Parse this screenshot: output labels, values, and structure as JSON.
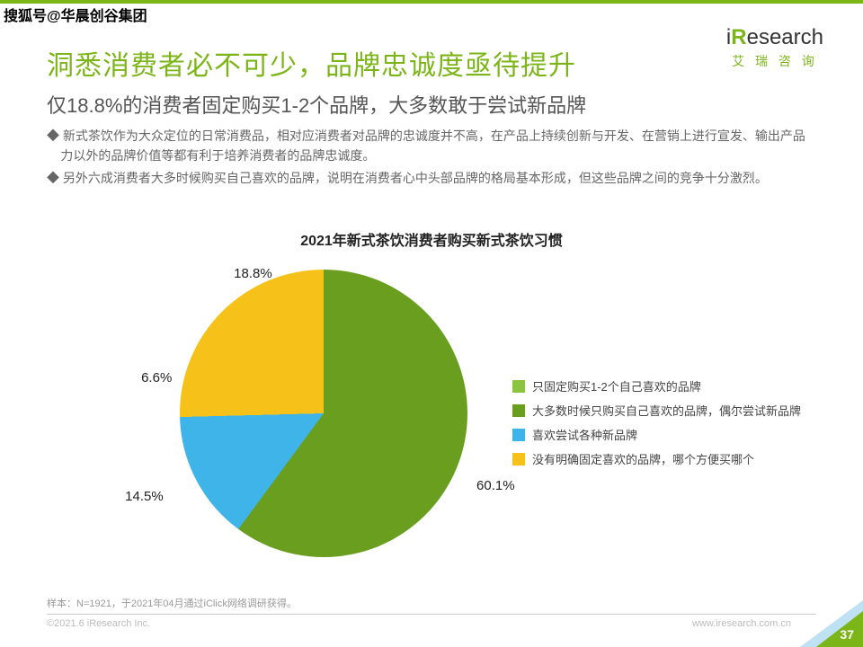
{
  "watermark": "搜狐号@华晨创谷集团",
  "logo": {
    "pre": "i",
    "bold": "R",
    "post": "esearch",
    "sub": "艾 瑞 咨 询"
  },
  "title": "洞悉消费者必不可少，品牌忠诚度亟待提升",
  "subtitle": "仅18.8%的消费者固定购买1-2个品牌，大多数敢于尝试新品牌",
  "bullets": [
    "◆ 新式茶饮作为大众定位的日常消费品，相对应消费者对品牌的忠诚度并不高，在产品上持续创新与开发、在营销上进行宣发、输出产品力以外的品牌价值等都有利于培养消费者的品牌忠诚度。",
    "◆ 另外六成消费者大多时候购买自己喜欢的品牌，说明在消费者心中头部品牌的格局基本形成，但这些品牌之间的竞争十分激烈。"
  ],
  "chart": {
    "type": "pie",
    "title": "2021年新式茶饮消费者购买新式茶饮习惯",
    "slices": [
      {
        "label": "只固定购买1-2个自己喜欢的品牌",
        "value": 18.8,
        "display": "18.8%",
        "color": "#8bc540"
      },
      {
        "label": "大多数时候只购买自己喜欢的品牌，偶尔尝试新品牌",
        "value": 60.1,
        "display": "60.1%",
        "color": "#6a9e1f"
      },
      {
        "label": "喜欢尝试各种新品牌",
        "value": 14.5,
        "display": "14.5%",
        "color": "#3fb4e8"
      },
      {
        "label": "没有明确固定喜欢的品牌，哪个方便买哪个",
        "value": 6.6,
        "display": "6.6%",
        "color": "#f6c21a"
      }
    ],
    "start_angle_deg": -67.7,
    "background": "#ffffff",
    "label_fontsize": 15,
    "legend_fontsize": 13
  },
  "footer": {
    "sample": "样本：N=1921，于2021年04月通过iClick网络调研获得。",
    "copyright": "©2021.6 iResearch Inc.",
    "site": "www.iresearch.com.cn",
    "page": "37"
  }
}
